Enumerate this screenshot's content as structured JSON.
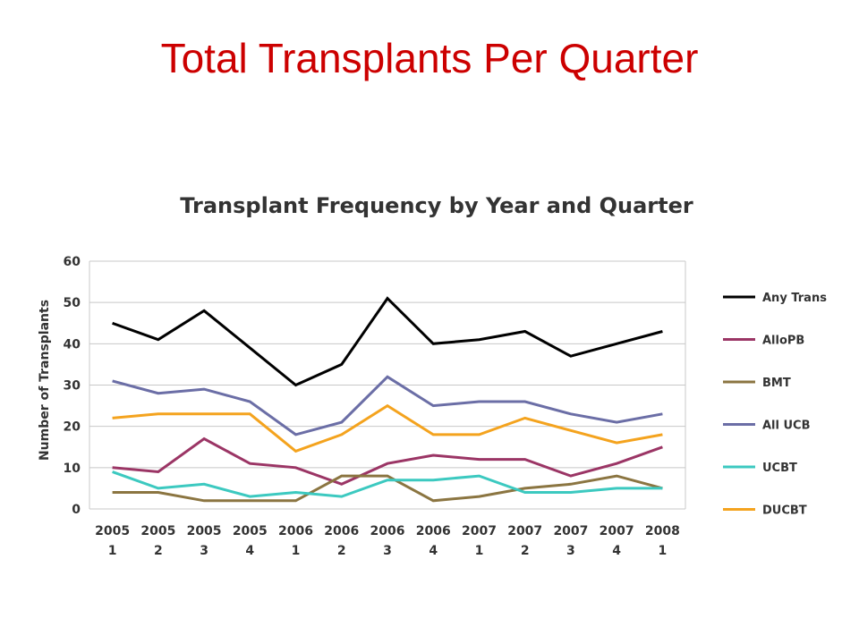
{
  "slide": {
    "title": "Total Transplants Per Quarter"
  },
  "chart_data": {
    "type": "line",
    "title": "Transplant Frequency by Year and Quarter",
    "xlabel": "",
    "ylabel": "Number of Transplants",
    "ylim": [
      0,
      60
    ],
    "yticks": [
      0,
      10,
      20,
      30,
      40,
      50,
      60
    ],
    "grid": true,
    "legend_position": "right",
    "categories": [
      {
        "year": "2005",
        "quarter": "1"
      },
      {
        "year": "2005",
        "quarter": "2"
      },
      {
        "year": "2005",
        "quarter": "3"
      },
      {
        "year": "2005",
        "quarter": "4"
      },
      {
        "year": "2006",
        "quarter": "1"
      },
      {
        "year": "2006",
        "quarter": "2"
      },
      {
        "year": "2006",
        "quarter": "3"
      },
      {
        "year": "2006",
        "quarter": "4"
      },
      {
        "year": "2007",
        "quarter": "1"
      },
      {
        "year": "2007",
        "quarter": "2"
      },
      {
        "year": "2007",
        "quarter": "3"
      },
      {
        "year": "2007",
        "quarter": "4"
      },
      {
        "year": "2008",
        "quarter": "1"
      }
    ],
    "series": [
      {
        "name": "Any Trans",
        "color": "#000000",
        "values": [
          45,
          41,
          48,
          39,
          30,
          35,
          51,
          40,
          41,
          43,
          37,
          40,
          43
        ]
      },
      {
        "name": "AlloPB",
        "color": "#9b3565",
        "values": [
          10,
          9,
          17,
          11,
          10,
          6,
          11,
          13,
          12,
          12,
          8,
          11,
          15
        ]
      },
      {
        "name": "BMT",
        "color": "#8b7541",
        "values": [
          4,
          4,
          2,
          2,
          2,
          8,
          8,
          2,
          3,
          5,
          6,
          8,
          5
        ]
      },
      {
        "name": "All UCB",
        "color": "#6b6ea6",
        "values": [
          31,
          28,
          29,
          26,
          18,
          21,
          32,
          25,
          26,
          26,
          23,
          21,
          23
        ]
      },
      {
        "name": "UCBT",
        "color": "#3cc9c0",
        "values": [
          9,
          5,
          6,
          3,
          4,
          3,
          7,
          7,
          8,
          4,
          4,
          5,
          5
        ]
      },
      {
        "name": "DUCBT",
        "color": "#f4a31e",
        "values": [
          22,
          23,
          23,
          23,
          14,
          18,
          25,
          18,
          18,
          22,
          19,
          16,
          18
        ]
      }
    ]
  }
}
